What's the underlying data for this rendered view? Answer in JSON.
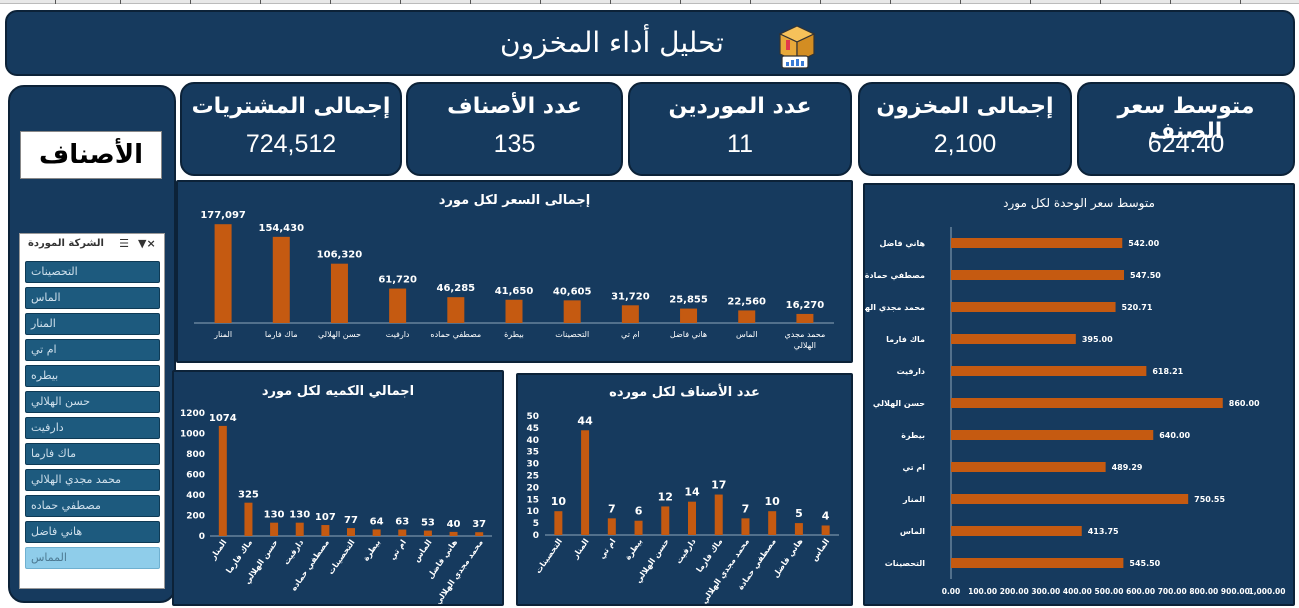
{
  "title": "تحليل أداء المخزون",
  "kpis": [
    {
      "label": "متوسط سعر الصنف",
      "value": "624.40"
    },
    {
      "label": "إجمالى المخزون",
      "value": "2,100"
    },
    {
      "label": "عدد الموردين",
      "value": "11"
    },
    {
      "label": "عدد الأصناف",
      "value": "135"
    },
    {
      "label": "إجمالى المشتريات",
      "value": "724,512"
    }
  ],
  "slicer": {
    "heading": "الأصناف",
    "title": "الشركة الموردة",
    "items": [
      {
        "label": "التحصينات",
        "selected": true
      },
      {
        "label": "الماس",
        "selected": true
      },
      {
        "label": "المنار",
        "selected": true
      },
      {
        "label": "ام تي",
        "selected": true
      },
      {
        "label": "بيطره",
        "selected": true
      },
      {
        "label": "حسن الهلالي",
        "selected": true
      },
      {
        "label": "دارفيت",
        "selected": true
      },
      {
        "label": "ماك فارما",
        "selected": true
      },
      {
        "label": "محمد مجدي الهلالي",
        "selected": true
      },
      {
        "label": "مصطفي حماده",
        "selected": true
      },
      {
        "label": "هاني فاضل",
        "selected": true
      },
      {
        "label": "المماس",
        "selected": false
      }
    ]
  },
  "colors": {
    "panel": "#163a5e",
    "bar": "#c55a11",
    "accent_light": "#8fcdea"
  },
  "chart_data": [
    {
      "type": "bar",
      "title": "إجمالى السعر لكل مورد",
      "categories": [
        "المنار",
        "ماك فارما",
        "حسن الهلالي",
        "دارفيت",
        "مصطفي حماده",
        "بيطرة",
        "التحصينات",
        "ام تي",
        "هاني فاضل",
        "الماس",
        "محمد مجدي الهلالي"
      ],
      "values": [
        177097,
        154430,
        106320,
        61720,
        46285,
        41650,
        40605,
        31720,
        25855,
        22560,
        16270
      ],
      "labels": [
        "177,097",
        "154,430",
        "106,320",
        "61,720",
        "46,285",
        "41,650",
        "40,605",
        "31,720",
        "25,855",
        "22,560",
        "16,270"
      ],
      "ylim": [
        0,
        190000
      ]
    },
    {
      "type": "bar",
      "title": "اجمالي الكميه لكل مورد",
      "categories": [
        "المنار",
        "ماك فارما",
        "حسن الهلالي",
        "دارفيت",
        "مصطفي حماده",
        "التحصينات",
        "بيطرة",
        "ام تي",
        "الماس",
        "هاني فاضل",
        "محمد مجدي الهلالي"
      ],
      "values": [
        1074,
        325,
        130,
        130,
        107,
        77,
        64,
        63,
        53,
        40,
        37
      ],
      "yticks": [
        "0",
        "200",
        "400",
        "600",
        "800",
        "1000",
        "1200"
      ],
      "ylim": [
        0,
        1200
      ]
    },
    {
      "type": "bar",
      "title": "عدد الأصناف لكل مورده",
      "categories": [
        "التحصينات",
        "المنار",
        "ام تي",
        "بيطرة",
        "حسن الهلالي",
        "دارفيت",
        "ماك فارما",
        "محمد مجدي الهلالي",
        "مصطفي حمادة",
        "هاني فاضل",
        "الماس"
      ],
      "values": [
        10,
        44,
        7,
        6,
        12,
        14,
        17,
        7,
        10,
        5,
        4
      ],
      "yticks": [
        "0",
        "5",
        "10",
        "15",
        "20",
        "25",
        "30",
        "35",
        "40",
        "45",
        "50"
      ],
      "ylim": [
        0,
        50
      ]
    },
    {
      "type": "bar",
      "orientation": "horizontal",
      "title": "متوسط سعر الوحدة لكل مورد",
      "categories": [
        "هاني فاضل",
        "مصطفي حمادة",
        "محمد مجدي الهلالي",
        "ماك فارما",
        "دارفيت",
        "حسن الهلالي",
        "بيطرة",
        "ام تي",
        "المنار",
        "الماس",
        "التحصينات"
      ],
      "values": [
        542.0,
        547.5,
        520.71,
        395.0,
        618.21,
        860.0,
        640.0,
        489.29,
        750.55,
        413.75,
        545.5
      ],
      "labels": [
        "542.00",
        "547.50",
        "520.71",
        "395.00",
        "618.21",
        "860.00",
        "640.00",
        "489.29",
        "750.55",
        "413.75",
        "545.50"
      ],
      "xticks": [
        "0.00",
        "100.00",
        "200.00",
        "300.00",
        "400.00",
        "500.00",
        "600.00",
        "700.00",
        "800.00",
        "900.00",
        "1,000.00"
      ],
      "xlim": [
        0,
        1000
      ]
    }
  ]
}
